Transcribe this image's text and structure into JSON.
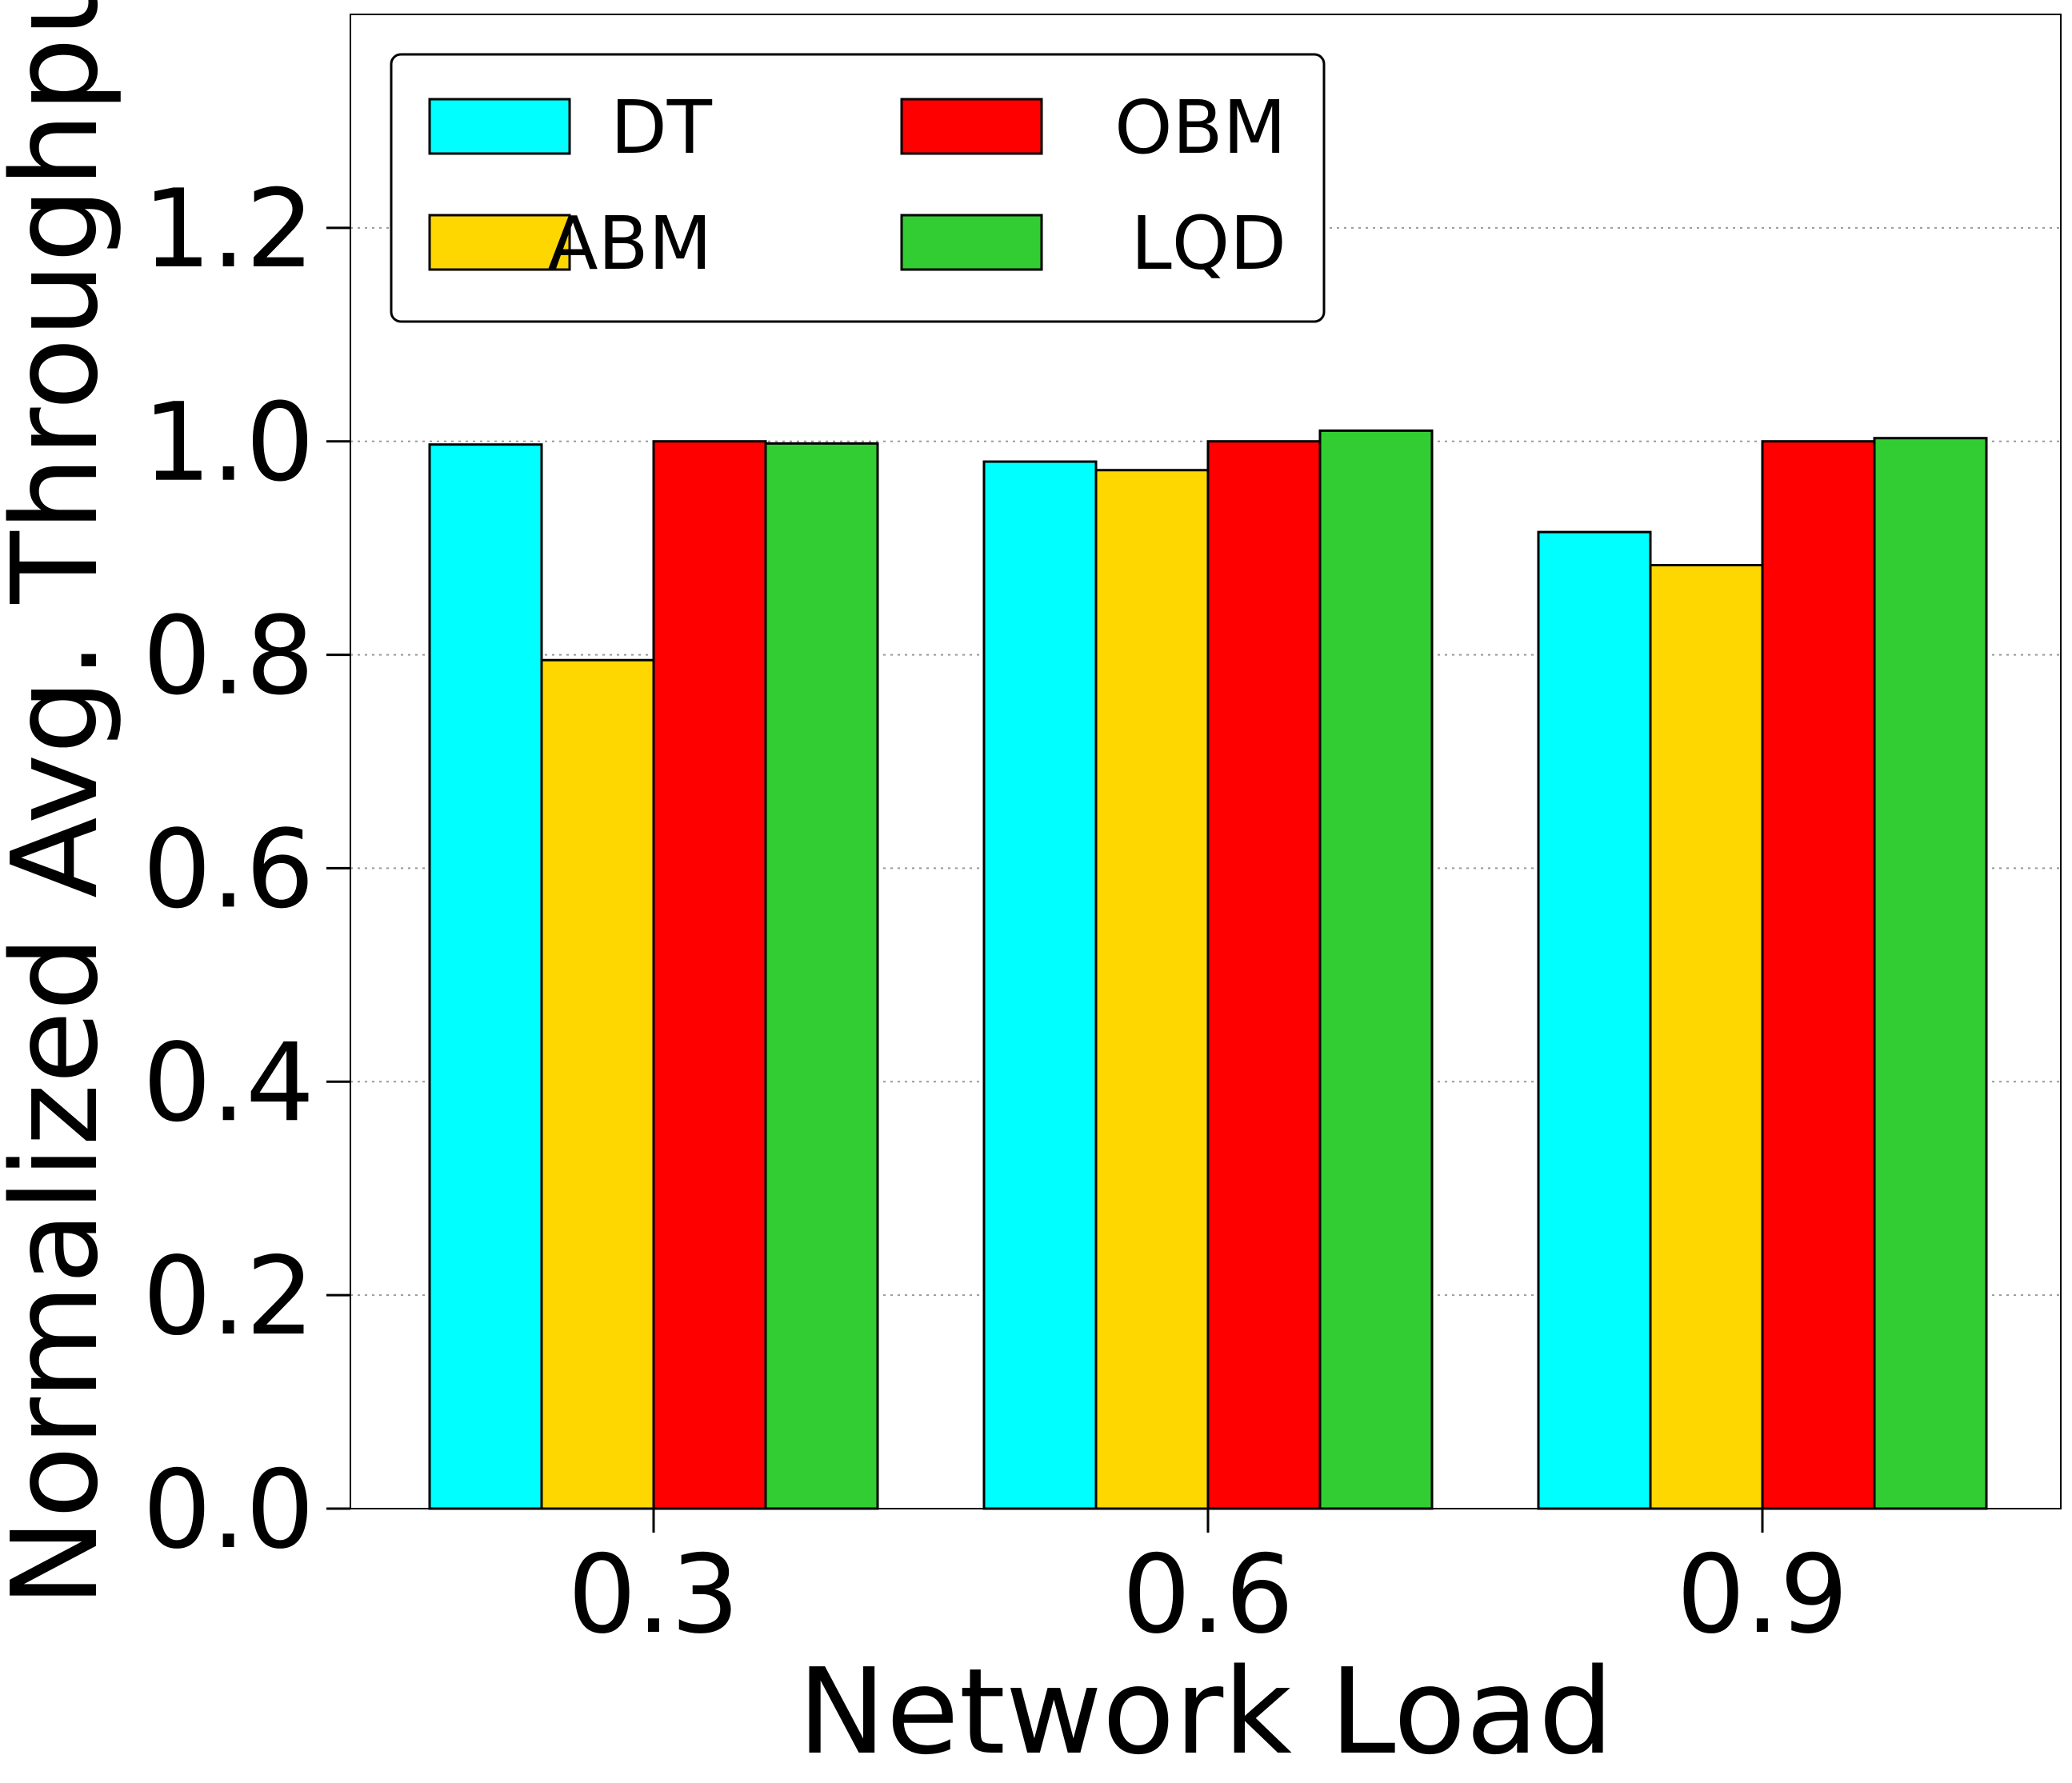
{
  "chart_data": {
    "type": "bar",
    "title": "",
    "xlabel": "Network Load",
    "ylabel": "Normalized Avg. Throughput",
    "categories": [
      "0.3",
      "0.6",
      "0.9"
    ],
    "yticks": [
      "0.0",
      "0.2",
      "0.4",
      "0.6",
      "0.8",
      "1.0",
      "1.2"
    ],
    "ylim": [
      0,
      1.4
    ],
    "grid": "horizontal, dotted",
    "legend_position": "top-left",
    "series": [
      {
        "name": "DT",
        "color": "#00ffff",
        "values": [
          0.997,
          0.981,
          0.915
        ]
      },
      {
        "name": "ABM",
        "color": "#ffd700",
        "values": [
          0.795,
          0.973,
          0.884
        ]
      },
      {
        "name": "OBM",
        "color": "#ff0000",
        "values": [
          1.0,
          1.0,
          1.0
        ]
      },
      {
        "name": "LQD",
        "color": "#32cd32",
        "values": [
          0.998,
          1.01,
          1.003
        ]
      }
    ]
  }
}
